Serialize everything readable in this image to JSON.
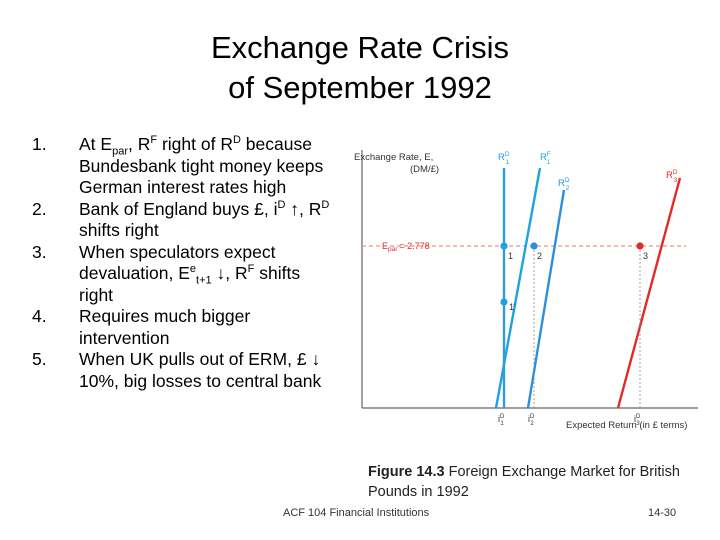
{
  "title": {
    "line1": "Exchange Rate Crisis",
    "line2": "of September 1992"
  },
  "points": [
    {
      "num": "1.",
      "parts": [
        {
          "t": "At E"
        },
        {
          "sub": "par"
        },
        {
          "t": ", R"
        },
        {
          "sup": "F"
        },
        {
          "t": " right of R"
        },
        {
          "sup": "D"
        },
        {
          "t": " because Bundesbank tight money keeps German interest rates high"
        }
      ]
    },
    {
      "num": "2.",
      "parts": [
        {
          "t": "Bank of England buys £, i"
        },
        {
          "sup": "D"
        },
        {
          "t": " ↑, R"
        },
        {
          "sup": "D"
        },
        {
          "t": " shifts right"
        }
      ]
    },
    {
      "num": "3.",
      "parts": [
        {
          "t": "When speculators expect devaluation, E"
        },
        {
          "sup": "e"
        },
        {
          "sub": "t+1"
        },
        {
          "t": " ↓, R"
        },
        {
          "sup": "F"
        },
        {
          "t": " shifts right"
        }
      ]
    },
    {
      "num": "4.",
      "parts": [
        {
          "t": "Requires much bigger intervention"
        }
      ]
    },
    {
      "num": "5.",
      "parts": [
        {
          "t": "When UK pulls out of ERM, £ ↓ 10%, big losses to central bank"
        }
      ]
    }
  ],
  "diagram": {
    "y_axis_label_1": "Exchange Rate, E,",
    "y_axis_label_2": "(DM/£)",
    "x_axis_label": "Expected Return (in £ terms)",
    "epar_label": "E",
    "epar_sub": "par",
    "epar_value": "= 2.778",
    "curve_labels": {
      "rd1": "R",
      "rd1_sup": "D",
      "rd1_sub": "1",
      "rf1": "R",
      "rf1_sup": "F",
      "rf1_sub": "1",
      "rd2": "R",
      "rd2_sup": "D",
      "rd2_sub": "2",
      "rd3": "R",
      "rd3_sup": "D",
      "rd3_sub": "3"
    },
    "point_labels": [
      "1",
      "2",
      "3",
      "1'"
    ],
    "tick_labels": [
      {
        "t": "i",
        "sup": "D",
        "sub": "1"
      },
      {
        "t": "i",
        "sup": "D",
        "sub": "2"
      },
      {
        "t": "i",
        "sup": "D",
        "sub": "3"
      }
    ],
    "colors": {
      "blue": "#1fa2e0",
      "blue2": "#2a8fe0",
      "red": "#e12b26",
      "epar": "#e87a6a"
    }
  },
  "caption": {
    "bold": "Figure 14.3",
    "text": " Foreign Exchange Market for British Pounds in 1992"
  },
  "footer": "ACF 104 Financial Institutions",
  "page_number": "14-30"
}
